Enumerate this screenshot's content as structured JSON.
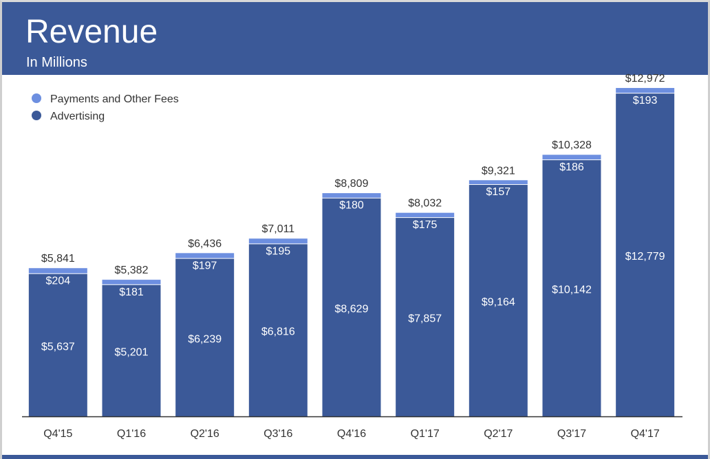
{
  "header": {
    "title": "Revenue",
    "subtitle": "In Millions"
  },
  "colors": {
    "advertising": "#3b5998",
    "payments": "#6d8fe0",
    "header": "#3b5998",
    "axis": "#333333",
    "text": "#333333"
  },
  "chart_data": {
    "type": "bar",
    "stacked": true,
    "title": "Revenue",
    "subtitle": "In Millions",
    "xlabel": "",
    "ylabel": "",
    "ylim": [
      0,
      14000
    ],
    "grid": false,
    "legend_position": "top-left",
    "categories": [
      "Q4'15",
      "Q1'16",
      "Q2'16",
      "Q3'16",
      "Q4'16",
      "Q1'17",
      "Q2'17",
      "Q3'17",
      "Q4'17"
    ],
    "series": [
      {
        "name": "Advertising",
        "color": "#3b5998",
        "values": [
          5637,
          5201,
          6239,
          6816,
          8629,
          7857,
          9164,
          10142,
          12779
        ],
        "labels": [
          "$5,637",
          "$5,201",
          "$6,239",
          "$6,816",
          "$8,629",
          "$7,857",
          "$9,164",
          "$10,142",
          "$12,779"
        ]
      },
      {
        "name": "Payments and Other Fees",
        "color": "#6d8fe0",
        "values": [
          204,
          181,
          197,
          195,
          180,
          175,
          157,
          186,
          193
        ],
        "labels": [
          "$204",
          "$181",
          "$197",
          "$195",
          "$180",
          "$175",
          "$157",
          "$186",
          "$193"
        ]
      }
    ],
    "totals": [
      5841,
      5382,
      6436,
      7011,
      8809,
      8032,
      9321,
      10328,
      12972
    ],
    "total_labels": [
      "$5,841",
      "$5,382",
      "$6,436",
      "$7,011",
      "$8,809",
      "$8,032",
      "$9,321",
      "$10,328",
      "$12,972"
    ],
    "legend": [
      "Payments and Other Fees",
      "Advertising"
    ]
  }
}
